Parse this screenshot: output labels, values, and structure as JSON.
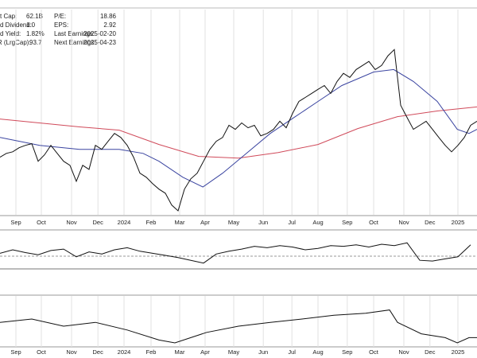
{
  "header": {
    "left": [
      {
        "label": "t Cap:",
        "value": "62.1B"
      },
      {
        "label": "d Dividend:",
        "value": "1.0"
      },
      {
        "label": "d Yield:",
        "value": "1.82%"
      },
      {
        "label": "TR (LrgCap):",
        "value": "93.7"
      }
    ],
    "right": [
      {
        "label": "P/E:",
        "value": "18.86"
      },
      {
        "label": "EPS:",
        "value": "2.92"
      },
      {
        "label": "Last Earnings:",
        "value": "2025-02-20"
      },
      {
        "label": "Next Earnings:",
        "value": "2025-04-23"
      }
    ]
  },
  "chart_data": [
    {
      "type": "line",
      "xlim": [
        0,
        75
      ],
      "ylim": [
        0,
        100
      ],
      "grid": true,
      "xticks": [
        {
          "value": 2.5,
          "label": "Sep"
        },
        {
          "value": 6.5,
          "label": "Oct"
        },
        {
          "value": 11.25,
          "label": "Nov"
        },
        {
          "value": 15.4,
          "label": "Dec"
        },
        {
          "value": 19.5,
          "label": "2024"
        },
        {
          "value": 23.75,
          "label": "Feb"
        },
        {
          "value": 28.25,
          "label": "Mar"
        },
        {
          "value": 32.25,
          "label": "Apr"
        },
        {
          "value": 36.75,
          "label": "May"
        },
        {
          "value": 41.4,
          "label": "Jun"
        },
        {
          "value": 45.9,
          "label": "Jul"
        },
        {
          "value": 50,
          "label": "Aug"
        },
        {
          "value": 54.6,
          "label": "Sep"
        },
        {
          "value": 58.75,
          "label": "Oct"
        },
        {
          "value": 63.5,
          "label": "Nov"
        },
        {
          "value": 67.6,
          "label": "Dec"
        },
        {
          "value": 72,
          "label": "2025"
        }
      ],
      "series": [
        {
          "color": "#d04a5a",
          "x": [
            0,
            12.5,
            18.75,
            25,
            31.25,
            37.5,
            43.75,
            50,
            56.25,
            62.5,
            68.75,
            75
          ],
          "values": [
            46.6,
            42.7,
            41.1,
            34,
            28.1,
            27.3,
            30,
            34,
            41.9,
            47.8,
            50.6,
            52.6
          ]
        },
        {
          "color": "#3a44a0",
          "x": [
            0,
            6.25,
            12.5,
            18.75,
            22.5,
            25,
            28.75,
            31.9,
            35,
            38.75,
            42.5,
            46.25,
            50,
            53.75,
            58.75,
            61.9,
            65,
            68.75,
            71.9,
            73.75,
            75
          ],
          "values": [
            37.5,
            33.6,
            31.6,
            31.6,
            29.6,
            25.7,
            17.8,
            13,
            19.8,
            29.6,
            39.5,
            47.4,
            55.3,
            63.2,
            69.9,
            71.1,
            65.2,
            55.3,
            41.5,
            39.5,
            41.5
          ]
        },
        {
          "color": "#111111",
          "x": [
            0,
            1,
            2,
            3,
            4,
            5,
            6,
            7,
            8,
            9,
            10,
            11,
            12,
            13,
            14,
            15,
            16,
            17,
            18,
            19,
            20,
            21,
            22,
            23,
            24,
            25,
            26,
            27,
            28,
            29,
            30,
            31,
            32,
            33,
            34,
            35,
            36,
            37,
            38,
            39,
            40,
            41,
            42,
            43,
            44,
            45,
            46,
            47,
            48,
            49,
            50,
            51,
            52,
            53,
            54,
            55,
            56,
            57,
            58,
            59,
            60,
            61,
            62,
            63,
            64,
            65,
            66,
            67,
            68,
            69,
            70,
            71,
            72,
            73,
            74,
            75
          ],
          "values": [
            27.7,
            29.6,
            30.4,
            32.4,
            33.6,
            34.4,
            25.7,
            28.9,
            33.6,
            29.6,
            25.7,
            23.7,
            15.8,
            23.7,
            21.7,
            33.6,
            31.6,
            35.6,
            39.5,
            37.5,
            33.6,
            27.7,
            19.8,
            17.8,
            14.6,
            11.9,
            9.9,
            4.0,
            1.2,
            11.9,
            17.0,
            19.8,
            25.7,
            31.6,
            35.6,
            37.5,
            43.5,
            41.5,
            44.7,
            42.3,
            43.5,
            38.3,
            39.5,
            41.5,
            45.5,
            42.3,
            49.4,
            55.3,
            57.3,
            59.3,
            61.3,
            63.2,
            59.3,
            65.2,
            69.2,
            67.2,
            71.1,
            73.1,
            75.1,
            71.1,
            73.1,
            77.9,
            81.0,
            53.4,
            47.4,
            41.5,
            43.5,
            45.5,
            41.5,
            37.5,
            33.6,
            30.4,
            33.6,
            37.5,
            43.5,
            45.5
          ]
        }
      ]
    },
    {
      "type": "line",
      "xlim": [
        0,
        75
      ],
      "ylim": [
        0,
        100
      ],
      "series": [
        {
          "color": "#111111",
          "x": [
            0,
            2,
            4,
            6,
            8,
            10,
            12,
            14,
            16,
            18,
            20,
            22,
            24,
            26,
            28,
            30,
            32,
            34,
            36,
            38,
            40,
            42,
            44,
            46,
            48,
            50,
            52,
            54,
            56,
            58,
            60,
            62,
            64,
            66,
            68,
            70,
            72,
            74
          ],
          "values": [
            40,
            50,
            42,
            36,
            48,
            52,
            30,
            44,
            38,
            50,
            56,
            46,
            40,
            34,
            28,
            20,
            12,
            38,
            46,
            52,
            60,
            56,
            62,
            58,
            50,
            54,
            62,
            60,
            64,
            58,
            66,
            62,
            70,
            20,
            18,
            24,
            30,
            64
          ]
        }
      ]
    },
    {
      "type": "line",
      "xlim": [
        0,
        75
      ],
      "ylim": [
        0,
        100
      ],
      "grid": true,
      "xticks": [
        {
          "value": 2.5,
          "label": "Sep"
        },
        {
          "value": 6.5,
          "label": "Oct"
        },
        {
          "value": 11.25,
          "label": "Nov"
        },
        {
          "value": 15.4,
          "label": "Dec"
        },
        {
          "value": 19.5,
          "label": "2024"
        },
        {
          "value": 23.75,
          "label": "Feb"
        },
        {
          "value": 28.25,
          "label": "Mar"
        },
        {
          "value": 32.25,
          "label": "Apr"
        },
        {
          "value": 36.75,
          "label": "May"
        },
        {
          "value": 41.4,
          "label": "Jun"
        },
        {
          "value": 45.9,
          "label": "Jul"
        },
        {
          "value": 50,
          "label": "Aug"
        },
        {
          "value": 54.6,
          "label": "Sep"
        },
        {
          "value": 58.75,
          "label": "Oct"
        },
        {
          "value": 63.5,
          "label": "Nov"
        },
        {
          "value": 67.6,
          "label": "Dec"
        },
        {
          "value": 72,
          "label": "2025"
        }
      ],
      "series": [
        {
          "color": "#111111",
          "x": [
            0,
            5,
            10,
            15,
            20,
            25,
            27.5,
            32.5,
            37.5,
            42.5,
            47.5,
            52.5,
            57.5,
            61.25,
            62.5,
            66.25,
            70,
            71.9,
            73.75,
            75
          ],
          "values": [
            48,
            55,
            40,
            48,
            32,
            11,
            5,
            27,
            40,
            48,
            55,
            63,
            67,
            74,
            48,
            24,
            16,
            5,
            16,
            16
          ]
        }
      ]
    }
  ]
}
